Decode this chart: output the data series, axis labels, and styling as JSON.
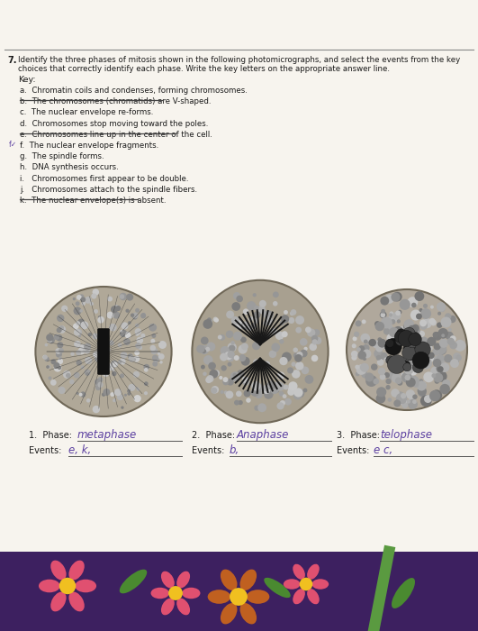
{
  "page_bg": "#f5f2ec",
  "question_number": "7.",
  "key_items": [
    "a.  Chromatin coils and condenses, forming chromosomes.",
    "b.  The chromosomes (chromatids) are V-shaped.",
    "c.  The nuclear envelope re-forms.",
    "d.  Chromosomes stop moving toward the poles.",
    "e.  Chromosomes line up in the center of the cell.",
    "f.  The nuclear envelope fragments.",
    "g.  The spindle forms.",
    "h.  DNA synthesis occurs.",
    "i.   Chromosomes first appear to be double.",
    "j.   Chromosomes attach to the spindle fibers.",
    "k.  The nuclear envelope(s) is absent."
  ],
  "strikethrough_items": [
    1,
    4,
    10
  ],
  "checkmark_items": [
    5
  ],
  "phase_answers": [
    "metaphase",
    "Anaphase",
    "telophase"
  ],
  "event_answers": [
    "e, k,",
    "b,",
    "e c,"
  ],
  "handwriting_color": "#5b3fa0",
  "text_color": "#1a1a1a",
  "bottom_dark": "#3d2060",
  "flower_pink": "#e05070",
  "flower_orange": "#c06020",
  "leaf_green": "#4a8a30",
  "stem_green": "#5a9a40",
  "flower_center": "#f0c020"
}
